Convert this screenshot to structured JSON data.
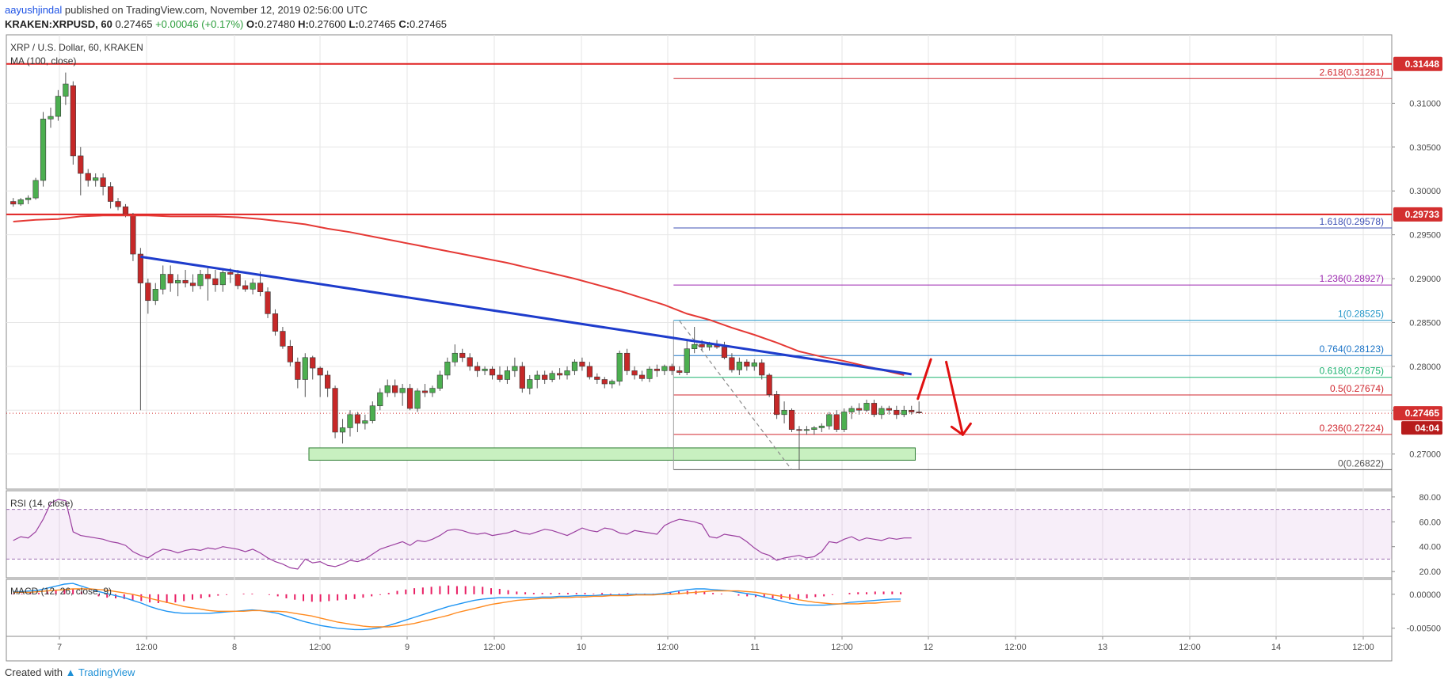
{
  "header": {
    "author": "aayushjindal",
    "published_text": " published on TradingView.com, November 12, 2019 02:56:00 UTC",
    "symbol": "KRAKEN:XRPUSD, 60",
    "last": "0.27465",
    "change": "+0.00046 (+0.17%)",
    "ohlc_o_label": "O:",
    "ohlc_o": "0.27480",
    "ohlc_h_label": "H:",
    "ohlc_h": "0.27600",
    "ohlc_l_label": "L:",
    "ohlc_l": "0.27465",
    "ohlc_c_label": "C:",
    "ohlc_c": "0.27465"
  },
  "footer": {
    "created_with": "Created with",
    "brand": "TradingView"
  },
  "colors": {
    "bull": "#4caf50",
    "bear": "#c62828",
    "ma": "#e53935",
    "trendline": "#1e3ccc",
    "support_zone": "#c8f0c0",
    "rsi": "#9b3fa0",
    "macd": "#2196f3",
    "signal": "#ff8a1f",
    "hist": "#e91e63"
  },
  "chart_data": {
    "type": "candlestick",
    "title": "XRP / U.S. Dollar, 60, KRAKEN",
    "indicator_label": "MA (100, close)",
    "ylim": [
      0.266,
      0.3178
    ],
    "y_ticks": [
      "0.31000",
      "0.30500",
      "0.30000",
      "0.29500",
      "0.29000",
      "0.28500",
      "0.28000",
      "0.27500",
      "0.27000"
    ],
    "x_ticks": [
      "7",
      "12:00",
      "8",
      "12:00",
      "9",
      "12:00",
      "10",
      "12:00",
      "11",
      "12:00",
      "12",
      "12:00",
      "13",
      "12:00",
      "14",
      "12:00"
    ],
    "candles_ohlc": [
      [
        0.2988,
        0.2992,
        0.2982,
        0.2985
      ],
      [
        0.2985,
        0.2992,
        0.2983,
        0.299
      ],
      [
        0.299,
        0.2995,
        0.2985,
        0.2992
      ],
      [
        0.2992,
        0.3015,
        0.299,
        0.3012
      ],
      [
        0.3012,
        0.309,
        0.3005,
        0.3082
      ],
      [
        0.3082,
        0.3095,
        0.3072,
        0.3085
      ],
      [
        0.3085,
        0.3115,
        0.308,
        0.3108
      ],
      [
        0.3108,
        0.3135,
        0.3098,
        0.3122
      ],
      [
        0.312,
        0.3125,
        0.303,
        0.304
      ],
      [
        0.304,
        0.305,
        0.2995,
        0.302
      ],
      [
        0.302,
        0.3025,
        0.3005,
        0.3012
      ],
      [
        0.3012,
        0.302,
        0.3005,
        0.3015
      ],
      [
        0.3015,
        0.302,
        0.2995,
        0.3005
      ],
      [
        0.3005,
        0.301,
        0.298,
        0.2988
      ],
      [
        0.2988,
        0.2992,
        0.2978,
        0.2982
      ],
      [
        0.2982,
        0.2985,
        0.297,
        0.2972
      ],
      [
        0.2972,
        0.2975,
        0.292,
        0.2928
      ],
      [
        0.2928,
        0.2935,
        0.275,
        0.2895
      ],
      [
        0.2895,
        0.29,
        0.286,
        0.2875
      ],
      [
        0.2875,
        0.2895,
        0.287,
        0.2888
      ],
      [
        0.2888,
        0.2915,
        0.2882,
        0.2905
      ],
      [
        0.2905,
        0.2915,
        0.2885,
        0.2895
      ],
      [
        0.2895,
        0.2905,
        0.288,
        0.2898
      ],
      [
        0.2898,
        0.291,
        0.289,
        0.2895
      ],
      [
        0.2895,
        0.2905,
        0.2885,
        0.2892
      ],
      [
        0.2892,
        0.291,
        0.2888,
        0.2905
      ],
      [
        0.2905,
        0.2912,
        0.2875,
        0.29
      ],
      [
        0.29,
        0.291,
        0.2885,
        0.2893
      ],
      [
        0.2893,
        0.2912,
        0.2885,
        0.2907
      ],
      [
        0.2907,
        0.2912,
        0.2895,
        0.2905
      ],
      [
        0.2905,
        0.291,
        0.2888,
        0.2892
      ],
      [
        0.2892,
        0.2898,
        0.2885,
        0.2888
      ],
      [
        0.2888,
        0.29,
        0.2882,
        0.2895
      ],
      [
        0.2895,
        0.2908,
        0.288,
        0.2885
      ],
      [
        0.2885,
        0.289,
        0.2855,
        0.286
      ],
      [
        0.286,
        0.2865,
        0.2835,
        0.284
      ],
      [
        0.284,
        0.2845,
        0.282,
        0.2823
      ],
      [
        0.2823,
        0.283,
        0.28,
        0.2805
      ],
      [
        0.2805,
        0.281,
        0.2775,
        0.2785
      ],
      [
        0.2785,
        0.2815,
        0.2765,
        0.281
      ],
      [
        0.281,
        0.2812,
        0.2785,
        0.2798
      ],
      [
        0.2798,
        0.28,
        0.2765,
        0.279
      ],
      [
        0.279,
        0.2795,
        0.2765,
        0.2775
      ],
      [
        0.2775,
        0.2778,
        0.2718,
        0.2725
      ],
      [
        0.2725,
        0.274,
        0.2712,
        0.273
      ],
      [
        0.273,
        0.275,
        0.272,
        0.2745
      ],
      [
        0.2745,
        0.2748,
        0.2725,
        0.2735
      ],
      [
        0.2735,
        0.2745,
        0.2728,
        0.2738
      ],
      [
        0.2738,
        0.276,
        0.2735,
        0.2755
      ],
      [
        0.2755,
        0.2775,
        0.275,
        0.277
      ],
      [
        0.277,
        0.2785,
        0.2765,
        0.2778
      ],
      [
        0.2778,
        0.2785,
        0.2765,
        0.277
      ],
      [
        0.277,
        0.278,
        0.2755,
        0.2775
      ],
      [
        0.2775,
        0.278,
        0.275,
        0.2752
      ],
      [
        0.2752,
        0.2775,
        0.2748,
        0.2772
      ],
      [
        0.2772,
        0.278,
        0.2765,
        0.277
      ],
      [
        0.277,
        0.2778,
        0.2765,
        0.2775
      ],
      [
        0.2775,
        0.2795,
        0.2772,
        0.279
      ],
      [
        0.279,
        0.281,
        0.2785,
        0.2805
      ],
      [
        0.2805,
        0.2825,
        0.28,
        0.2815
      ],
      [
        0.2815,
        0.282,
        0.2805,
        0.281
      ],
      [
        0.281,
        0.2815,
        0.2795,
        0.28
      ],
      [
        0.28,
        0.2805,
        0.2788,
        0.2795
      ],
      [
        0.2795,
        0.28,
        0.279,
        0.2797
      ],
      [
        0.2797,
        0.28,
        0.2785,
        0.279
      ],
      [
        0.279,
        0.28,
        0.2782,
        0.2785
      ],
      [
        0.2785,
        0.28,
        0.278,
        0.2795
      ],
      [
        0.2795,
        0.281,
        0.2788,
        0.28
      ],
      [
        0.28,
        0.2805,
        0.277,
        0.2775
      ],
      [
        0.2775,
        0.279,
        0.2768,
        0.2785
      ],
      [
        0.2785,
        0.2795,
        0.2775,
        0.279
      ],
      [
        0.279,
        0.2795,
        0.278,
        0.2785
      ],
      [
        0.2785,
        0.2795,
        0.2782,
        0.2792
      ],
      [
        0.2792,
        0.2798,
        0.2785,
        0.279
      ],
      [
        0.279,
        0.28,
        0.2785,
        0.2795
      ],
      [
        0.2795,
        0.2808,
        0.279,
        0.2805
      ],
      [
        0.2805,
        0.281,
        0.2795,
        0.28
      ],
      [
        0.28,
        0.2805,
        0.2785,
        0.2788
      ],
      [
        0.2788,
        0.2792,
        0.278,
        0.2785
      ],
      [
        0.2785,
        0.2788,
        0.2775,
        0.278
      ],
      [
        0.278,
        0.2785,
        0.2775,
        0.2783
      ],
      [
        0.2783,
        0.2818,
        0.2778,
        0.2815
      ],
      [
        0.2815,
        0.282,
        0.279,
        0.2795
      ],
      [
        0.2795,
        0.28,
        0.2785,
        0.279
      ],
      [
        0.279,
        0.2795,
        0.2783,
        0.2786
      ],
      [
        0.2786,
        0.28,
        0.2782,
        0.2797
      ],
      [
        0.2797,
        0.2802,
        0.2788,
        0.2795
      ],
      [
        0.2795,
        0.2802,
        0.279,
        0.28
      ],
      [
        0.28,
        0.2803,
        0.279,
        0.2795
      ],
      [
        0.2795,
        0.28,
        0.279,
        0.2793
      ],
      [
        0.2793,
        0.283,
        0.279,
        0.282
      ],
      [
        0.282,
        0.2845,
        0.2815,
        0.2825
      ],
      [
        0.2825,
        0.283,
        0.2818,
        0.2822
      ],
      [
        0.2822,
        0.2828,
        0.2818,
        0.2825
      ],
      [
        0.2825,
        0.283,
        0.282,
        0.2822
      ],
      [
        0.2822,
        0.2828,
        0.2808,
        0.281
      ],
      [
        0.281,
        0.2815,
        0.2793,
        0.2796
      ],
      [
        0.2796,
        0.281,
        0.279,
        0.2805
      ],
      [
        0.2805,
        0.2808,
        0.2795,
        0.28
      ],
      [
        0.28,
        0.2808,
        0.2795,
        0.2804
      ],
      [
        0.2804,
        0.2808,
        0.2785,
        0.279
      ],
      [
        0.279,
        0.2792,
        0.2765,
        0.2768
      ],
      [
        0.2768,
        0.2772,
        0.274,
        0.2745
      ],
      [
        0.2745,
        0.276,
        0.2735,
        0.275
      ],
      [
        0.275,
        0.2752,
        0.2725,
        0.2728
      ],
      [
        0.2728,
        0.2732,
        0.2682,
        0.2727
      ],
      [
        0.2727,
        0.2732,
        0.2722,
        0.2728
      ],
      [
        0.2728,
        0.2732,
        0.2722,
        0.273
      ],
      [
        0.273,
        0.2735,
        0.2725,
        0.2732
      ],
      [
        0.2732,
        0.2748,
        0.2728,
        0.2745
      ],
      [
        0.2745,
        0.275,
        0.2725,
        0.2728
      ],
      [
        0.2728,
        0.2752,
        0.2725,
        0.2748
      ],
      [
        0.2748,
        0.2755,
        0.274,
        0.2752
      ],
      [
        0.2752,
        0.2758,
        0.2745,
        0.275
      ],
      [
        0.275,
        0.2762,
        0.2748,
        0.2758
      ],
      [
        0.2758,
        0.2762,
        0.2742,
        0.2745
      ],
      [
        0.2745,
        0.2755,
        0.274,
        0.2752
      ],
      [
        0.2752,
        0.2755,
        0.2745,
        0.275
      ],
      [
        0.275,
        0.2755,
        0.274,
        0.2745
      ],
      [
        0.2745,
        0.2755,
        0.2742,
        0.275
      ],
      [
        0.275,
        0.2755,
        0.2745,
        0.2748
      ],
      [
        0.2748,
        0.276,
        0.2746,
        0.2747
      ]
    ],
    "ma_100": [
      [
        0,
        0.2965
      ],
      [
        3,
        0.2967
      ],
      [
        6,
        0.2968
      ],
      [
        9,
        0.2971
      ],
      [
        12,
        0.2972
      ],
      [
        15,
        0.2972
      ],
      [
        18,
        0.2972
      ],
      [
        21,
        0.2971
      ],
      [
        24,
        0.2971
      ],
      [
        27,
        0.2971
      ],
      [
        30,
        0.297
      ],
      [
        33,
        0.2968
      ],
      [
        36,
        0.2965
      ],
      [
        39,
        0.2962
      ],
      [
        42,
        0.2957
      ],
      [
        45,
        0.2953
      ],
      [
        48,
        0.2948
      ],
      [
        51,
        0.2943
      ],
      [
        54,
        0.2938
      ],
      [
        57,
        0.2933
      ],
      [
        60,
        0.2928
      ],
      [
        63,
        0.2923
      ],
      [
        66,
        0.2918
      ],
      [
        69,
        0.2912
      ],
      [
        72,
        0.2906
      ],
      [
        75,
        0.29
      ],
      [
        78,
        0.2893
      ],
      [
        81,
        0.2886
      ],
      [
        84,
        0.2878
      ],
      [
        87,
        0.287
      ],
      [
        90,
        0.286
      ],
      [
        93,
        0.2853
      ],
      [
        96,
        0.2844
      ],
      [
        99,
        0.2836
      ],
      [
        102,
        0.2827
      ],
      [
        105,
        0.2817
      ],
      [
        108,
        0.2811
      ],
      [
        111,
        0.2806
      ],
      [
        114,
        0.28
      ],
      [
        117,
        0.2794
      ],
      [
        119,
        0.279
      ]
    ],
    "trendline": {
      "from": [
        17,
        0.2925
      ],
      "to": [
        120,
        0.2791
      ]
    },
    "support_zone": {
      "from": 40,
      "to": 121,
      "low": 0.2693,
      "high": 0.2707
    },
    "horizontal_levels": [
      {
        "label": "0.31448",
        "value": 0.31448
      },
      {
        "label": "0.29733",
        "value": 0.29733
      }
    ],
    "fib_levels": [
      {
        "label": "2.618(0.31281)",
        "value": 0.31281,
        "color": "#d0262e"
      },
      {
        "label": "1.618(0.29578)",
        "value": 0.29578,
        "color": "#3f51b5"
      },
      {
        "label": "1.236(0.28927)",
        "value": 0.28927,
        "color": "#9c27b0"
      },
      {
        "label": "1(0.28525)",
        "value": 0.28525,
        "color": "#2196c8"
      },
      {
        "label": "0.764(0.28123)",
        "value": 0.28123,
        "color": "#1a73c7"
      },
      {
        "label": "0.618(0.27875)",
        "value": 0.27875,
        "color": "#1bb26f"
      },
      {
        "label": "0.5(0.27674)",
        "value": 0.27674,
        "color": "#d0262e"
      },
      {
        "label": "0.236(0.27224)",
        "value": 0.27224,
        "color": "#d0262e"
      },
      {
        "label": "0(0.26822)",
        "value": 0.26822,
        "color": "#555555"
      }
    ],
    "fib_dashed_from": [
      89,
      0.2852
    ],
    "fib_dashed_to": [
      104,
      0.2682
    ],
    "price_badge": {
      "label": "0.27465",
      "value": 0.27465
    },
    "time_badge": {
      "label": "04:04"
    },
    "badge_colors": {
      "red": "#d32f2f",
      "dark_red": "#b71c1c"
    },
    "rsi": {
      "label": "RSI (14, close)",
      "ylim": [
        15,
        85
      ],
      "ticks": [
        "80.00",
        "60.00",
        "40.00",
        "20.00"
      ],
      "values": [
        45,
        48,
        47,
        52,
        62,
        75,
        78,
        77,
        52,
        49,
        48,
        47,
        46,
        44,
        43,
        41,
        36,
        33,
        31,
        35,
        38,
        37,
        35,
        37,
        38,
        37,
        39,
        38,
        40,
        39,
        38,
        36,
        38,
        35,
        31,
        28,
        26,
        23,
        22,
        30,
        27,
        28,
        25,
        24,
        26,
        29,
        28,
        30,
        34,
        38,
        40,
        42,
        44,
        41,
        45,
        44,
        46,
        49,
        53,
        54,
        53,
        51,
        50,
        51,
        49,
        50,
        51,
        53,
        51,
        50,
        52,
        54,
        53,
        51,
        49,
        52,
        55,
        53,
        52,
        55,
        54,
        51,
        50,
        53,
        52,
        51,
        50,
        57,
        60,
        62,
        61,
        60,
        58,
        48,
        47,
        50,
        49,
        48,
        44,
        39,
        35,
        33,
        29,
        31,
        32,
        33,
        31,
        32,
        36,
        44,
        43,
        46,
        48,
        45,
        47,
        46,
        45,
        47,
        46,
        47,
        47
      ]
    },
    "macd": {
      "label": "MACD (12, 26, close, 9)",
      "ylim": [
        -0.0062,
        0.0022
      ],
      "ticks": [
        "0.00000",
        "-0.00500"
      ],
      "macd_values": [
        0.0004,
        0.0004,
        0.0005,
        0.0006,
        0.0009,
        0.0012,
        0.0015,
        0.0016,
        0.0012,
        0.0008,
        0.0004,
        0.0001,
        -0.0002,
        -0.0005,
        -0.0009,
        -0.0013,
        -0.0018,
        -0.0022,
        -0.0025,
        -0.0027,
        -0.0028,
        -0.0028,
        -0.0028,
        -0.0028,
        -0.0027,
        -0.0026,
        -0.0025,
        -0.0024,
        -0.0023,
        -0.0024,
        -0.0026,
        -0.0028,
        -0.0032,
        -0.0036,
        -0.004,
        -0.0043,
        -0.0046,
        -0.0048,
        -0.005,
        -0.0051,
        -0.0052,
        -0.0052,
        -0.0051,
        -0.0049,
        -0.0046,
        -0.0042,
        -0.0038,
        -0.0034,
        -0.003,
        -0.0026,
        -0.0022,
        -0.0018,
        -0.0015,
        -0.0012,
        -0.0009,
        -0.0007,
        -0.0006,
        -0.0005,
        -0.0005,
        -0.0005,
        -0.0005,
        -0.0005,
        -0.0004,
        -0.0004,
        -0.0003,
        -0.0003,
        -0.0002,
        -0.0002,
        -0.0002,
        -0.0001,
        -0.0001,
        -0.0001,
        0.0,
        0.0,
        0.0,
        0.0,
        0.0001,
        0.0003,
        0.0005,
        0.0007,
        0.0008,
        0.0008,
        0.0007,
        0.0006,
        0.0005,
        0.0003,
        0.0001,
        -0.0001,
        -0.0004,
        -0.0007,
        -0.001,
        -0.0013,
        -0.0015,
        -0.0016,
        -0.0016,
        -0.0016,
        -0.0015,
        -0.0014,
        -0.0012,
        -0.0011,
        -0.001,
        -0.0009,
        -0.0008,
        -0.0007,
        -0.0007
      ],
      "signal_values": [
        0.0003,
        0.0003,
        0.0003,
        0.0004,
        0.0005,
        0.0006,
        0.0007,
        0.0008,
        0.0008,
        0.0008,
        0.0007,
        0.0006,
        0.0004,
        0.0002,
        0.0,
        -0.0003,
        -0.0006,
        -0.0009,
        -0.0012,
        -0.0015,
        -0.0018,
        -0.002,
        -0.0022,
        -0.0024,
        -0.0025,
        -0.0025,
        -0.0025,
        -0.0025,
        -0.0024,
        -0.0024,
        -0.0025,
        -0.0025,
        -0.0026,
        -0.0028,
        -0.003,
        -0.0032,
        -0.0035,
        -0.0038,
        -0.0041,
        -0.0043,
        -0.0045,
        -0.0047,
        -0.0048,
        -0.0048,
        -0.0048,
        -0.0047,
        -0.0045,
        -0.0043,
        -0.004,
        -0.0037,
        -0.0034,
        -0.0031,
        -0.0027,
        -0.0024,
        -0.0021,
        -0.0018,
        -0.0015,
        -0.0013,
        -0.0011,
        -0.0009,
        -0.0008,
        -0.0007,
        -0.0006,
        -0.0006,
        -0.0005,
        -0.0005,
        -0.0004,
        -0.0004,
        -0.0003,
        -0.0003,
        -0.0002,
        -0.0002,
        -0.0002,
        -0.0001,
        -0.0001,
        -0.0001,
        0.0,
        0.0,
        0.0001,
        0.0002,
        0.0003,
        0.0004,
        0.0005,
        0.0005,
        0.0005,
        0.0005,
        0.0004,
        0.0003,
        0.0001,
        -0.0001,
        -0.0003,
        -0.0005,
        -0.0008,
        -0.001,
        -0.0012,
        -0.0013,
        -0.0014,
        -0.0014,
        -0.0014,
        -0.0014,
        -0.0013,
        -0.0013,
        -0.0012,
        -0.0011,
        -0.001
      ]
    }
  }
}
